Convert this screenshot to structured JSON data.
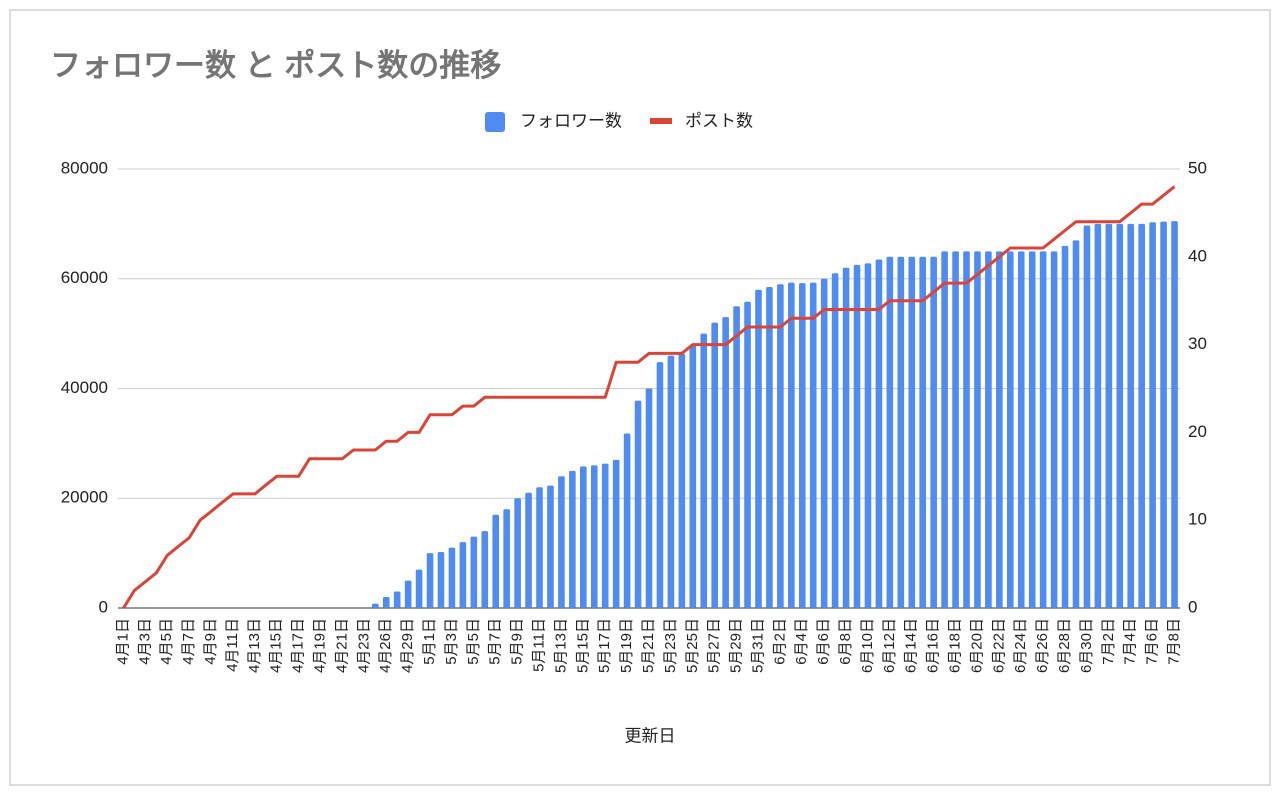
{
  "chart_data": {
    "type": "combo",
    "title": "フォロワー数 と ポスト数の推移",
    "xlabel": "更新日",
    "categories": [
      "4月1日",
      null,
      "4月3日",
      null,
      "4月5日",
      null,
      "4月7日",
      null,
      "4月9日",
      null,
      "4月11日",
      null,
      "4月13日",
      null,
      "4月15日",
      null,
      "4月17日",
      null,
      "4月19日",
      null,
      "4月21日",
      null,
      "4月23日",
      null,
      "4月26日",
      null,
      "4月29日",
      null,
      "5月1日",
      null,
      "5月3日",
      null,
      "5月5日",
      null,
      "5月7日",
      null,
      "5月9日",
      null,
      "5月11日",
      null,
      "5月13日",
      null,
      "5月15日",
      null,
      "5月17日",
      null,
      "5月19日",
      null,
      "5月21日",
      null,
      "5月23日",
      null,
      "5月25日",
      null,
      "5月27日",
      null,
      "5月29日",
      null,
      "5月31日",
      null,
      "6月2日",
      null,
      "6月4日",
      null,
      "6月6日",
      null,
      "6月8日",
      null,
      "6月10日",
      null,
      "6月12日",
      null,
      "6月14日",
      null,
      "6月16日",
      null,
      "6月18日",
      null,
      "6月20日",
      null,
      "6月22日",
      null,
      "6月24日",
      null,
      "6月26日",
      null,
      "6月28日",
      null,
      "6月30日",
      null,
      "7月2日",
      null,
      "7月4日",
      null,
      "7月6日",
      null,
      "7月8日"
    ],
    "series": [
      {
        "name": "フォロワー数",
        "type": "bar",
        "color": "#4f8bf0",
        "values": [
          0,
          0,
          0,
          0,
          0,
          0,
          0,
          0,
          0,
          0,
          0,
          0,
          0,
          0,
          0,
          0,
          0,
          0,
          0,
          0,
          0,
          0,
          0,
          800,
          2000,
          3000,
          5000,
          7000,
          10000,
          10200,
          11000,
          12000,
          13000,
          14000,
          17000,
          18000,
          20000,
          21000,
          22000,
          22300,
          24000,
          25000,
          25800,
          26000,
          26300,
          27000,
          31800,
          37800,
          40000,
          44800,
          46000,
          46300,
          48000,
          50000,
          52000,
          53000,
          55000,
          55800,
          58000,
          58500,
          59000,
          59300,
          59200,
          59300,
          60000,
          61000,
          62000,
          62500,
          62800,
          63500,
          64000,
          64000,
          64000,
          64000,
          64000,
          65000,
          65000,
          65000,
          65000,
          65000,
          65000,
          65000,
          65000,
          65000,
          65000,
          65000,
          66000,
          67000,
          69700,
          70000,
          70000,
          70000,
          70000,
          70000,
          70300,
          70400,
          70500
        ]
      },
      {
        "name": "ポスト数",
        "type": "line",
        "axis": "y2",
        "color": "#db4437",
        "values": [
          0,
          2,
          3,
          4,
          6,
          7,
          8,
          10,
          11,
          12,
          13,
          13,
          13,
          14,
          15,
          15,
          15,
          17,
          17,
          17,
          17,
          18,
          18,
          18,
          19,
          19,
          20,
          20,
          22,
          22,
          22,
          23,
          23,
          24,
          24,
          24,
          24,
          24,
          24,
          24,
          24,
          24,
          24,
          24,
          24,
          28,
          28,
          28,
          29,
          29,
          29,
          29,
          30,
          30,
          30,
          30,
          31,
          32,
          32,
          32,
          32,
          33,
          33,
          33,
          34,
          34,
          34,
          34,
          34,
          34,
          35,
          35,
          35,
          35,
          36,
          37,
          37,
          37,
          38,
          39,
          40,
          41,
          41,
          41,
          41,
          42,
          43,
          44,
          44,
          44,
          44,
          44,
          45,
          46,
          46,
          47,
          48
        ]
      }
    ],
    "ylim": [
      0,
      80000
    ],
    "yticks": [
      0,
      20000,
      40000,
      60000,
      80000
    ],
    "y2lim": [
      0,
      50
    ],
    "y2ticks": [
      0,
      10,
      20,
      30,
      40,
      50
    ],
    "grid": true,
    "legend": "top"
  }
}
